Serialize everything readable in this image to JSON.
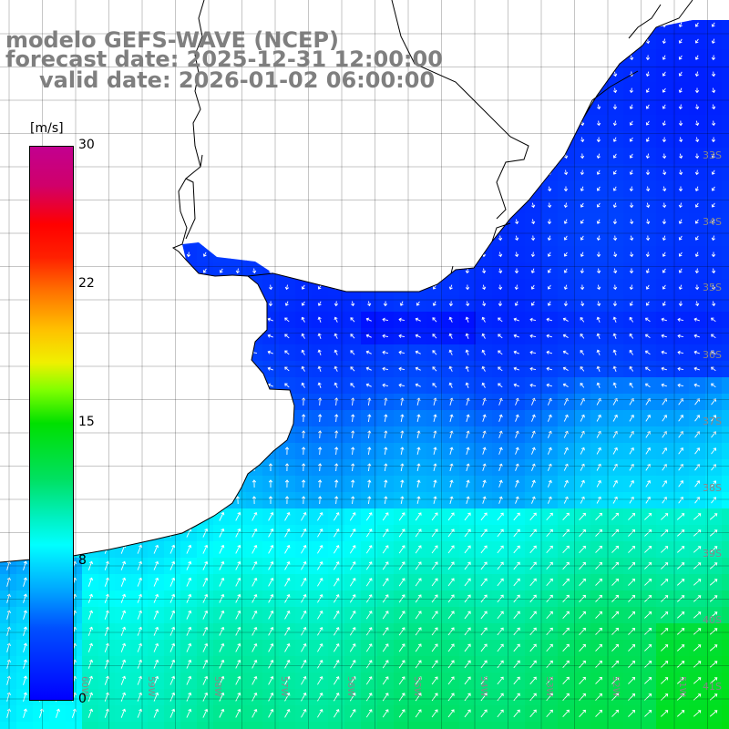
{
  "title": {
    "line1": "modelo GEFS-WAVE (NCEP)",
    "line2": "forecast date: 2025-12-31 12:00:00",
    "line3": "valid date: 2026-01-02 06:00:00"
  },
  "colorbar": {
    "unit": "[m/s]",
    "ticks": [
      "30",
      "22",
      "15",
      "8",
      "0"
    ],
    "range": [
      0,
      30
    ]
  },
  "map_labels": {
    "latitudes": [
      "33S",
      "34S",
      "35S",
      "36S",
      "37S",
      "38S",
      "39S",
      "40S",
      "41S"
    ],
    "longitudes": [
      "60W",
      "59W",
      "58W",
      "57W",
      "56W",
      "55W",
      "54W",
      "53W",
      "52W",
      "51W"
    ]
  },
  "colors": {
    "title": "#7f7f7f",
    "grid": "#000000",
    "coastline": "#000000",
    "land": "#ffffff",
    "arrows": "#ffffff",
    "tick_labels": "#888888"
  },
  "icons": {
    "wind_arrow": "wind-arrow-icon"
  }
}
